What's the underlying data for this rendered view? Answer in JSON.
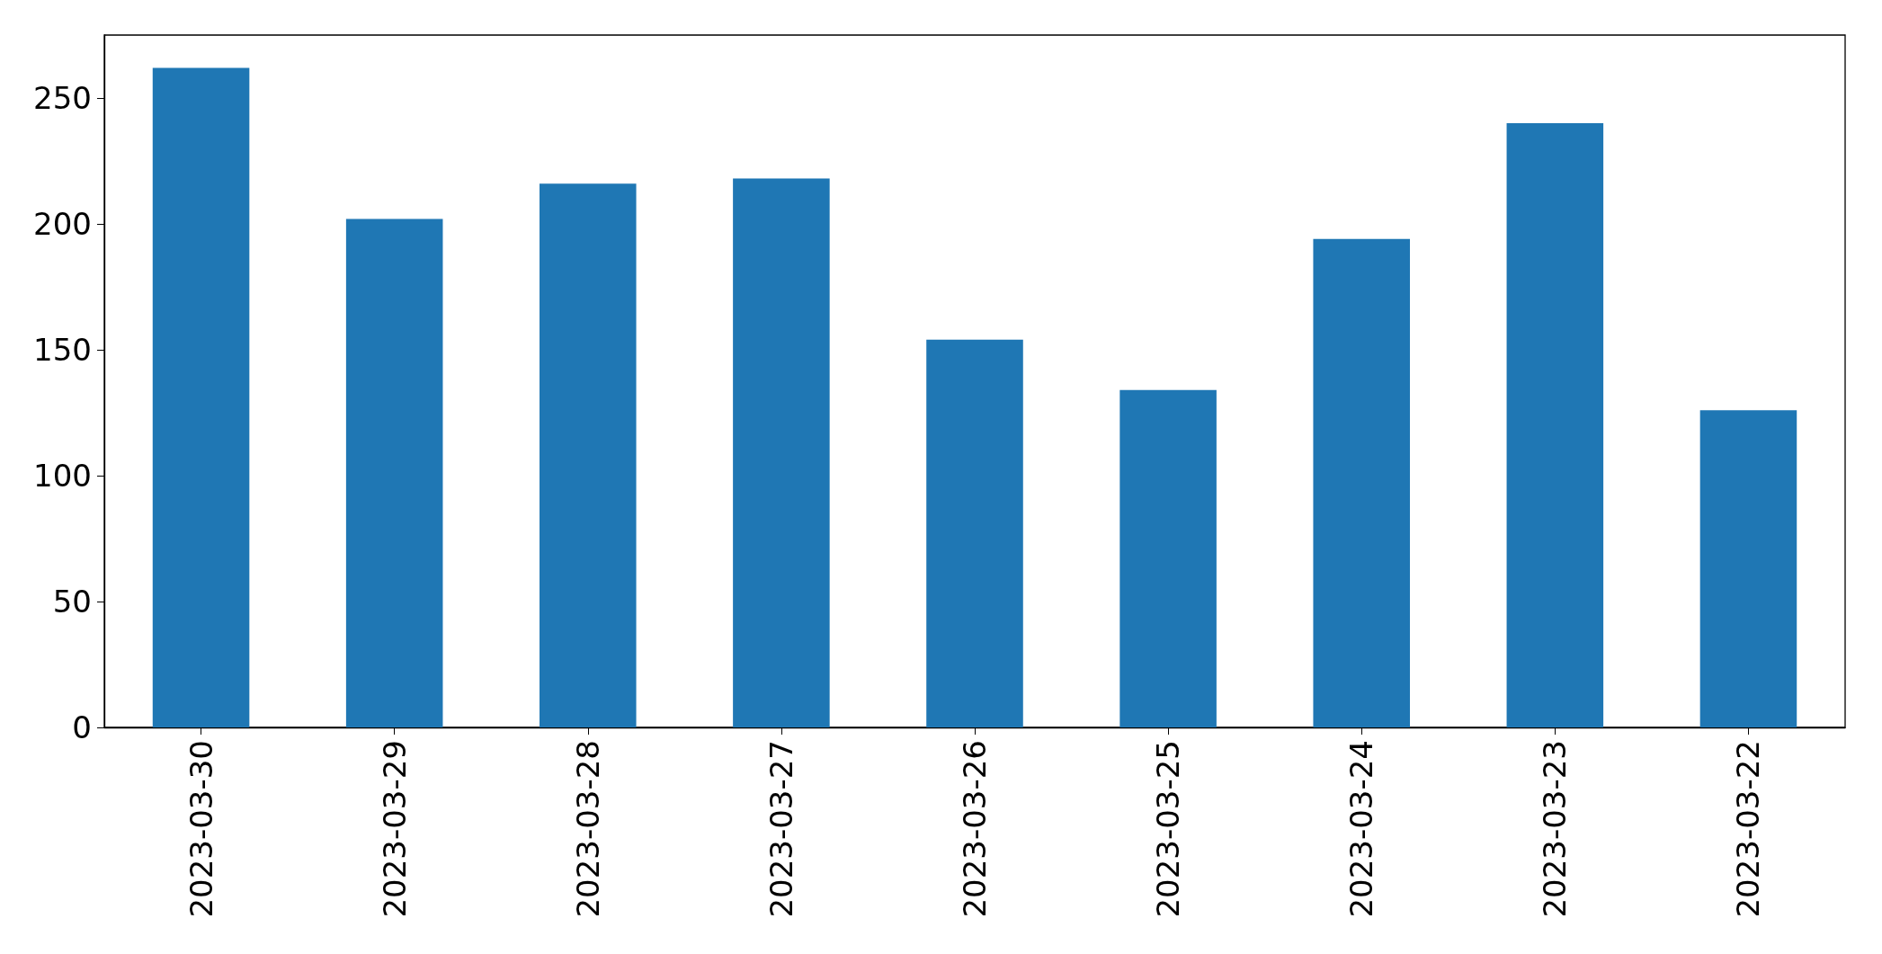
{
  "chart_data": {
    "type": "bar",
    "categories": [
      "2023-03-30",
      "2023-03-29",
      "2023-03-28",
      "2023-03-27",
      "2023-03-26",
      "2023-03-25",
      "2023-03-24",
      "2023-03-23",
      "2023-03-22"
    ],
    "values": [
      262,
      202,
      216,
      218,
      154,
      134,
      194,
      240,
      126
    ],
    "color": "#1f77b4",
    "ylim": [
      0,
      275
    ],
    "yticks": [
      0,
      50,
      100,
      150,
      200,
      250
    ],
    "grid": false
  }
}
